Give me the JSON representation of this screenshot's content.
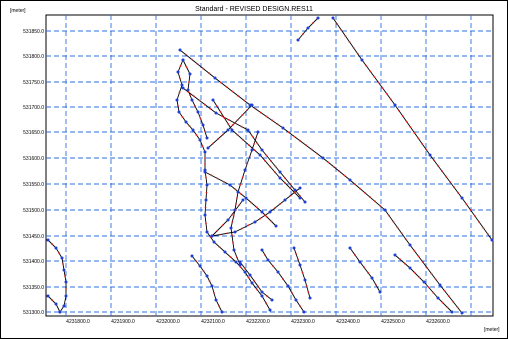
{
  "window": {
    "title": "Standard - REVISED DESIGN.RES11",
    "y_unit": "[meter]",
    "x_unit": "[meter]"
  },
  "axes": {
    "x_ticks": [
      "4231800.0",
      "4231900.0",
      "4232000.0",
      "4232100.0",
      "4232200.0",
      "4232300.0",
      "4232400.0",
      "4232500.0",
      "4232600.0"
    ],
    "y_ticks": [
      "531850.0",
      "531800.0",
      "531750.0",
      "531700.0",
      "531650.0",
      "531600.0",
      "531550.0",
      "531500.0",
      "531450.0",
      "531400.0",
      "531350.0",
      "531300.0"
    ],
    "grid_color": "#2e6fe0"
  },
  "network": {
    "pipe_color": "#000000",
    "node_color": "#1d3fd6",
    "segment_marker_color": "#e0201a"
  }
}
